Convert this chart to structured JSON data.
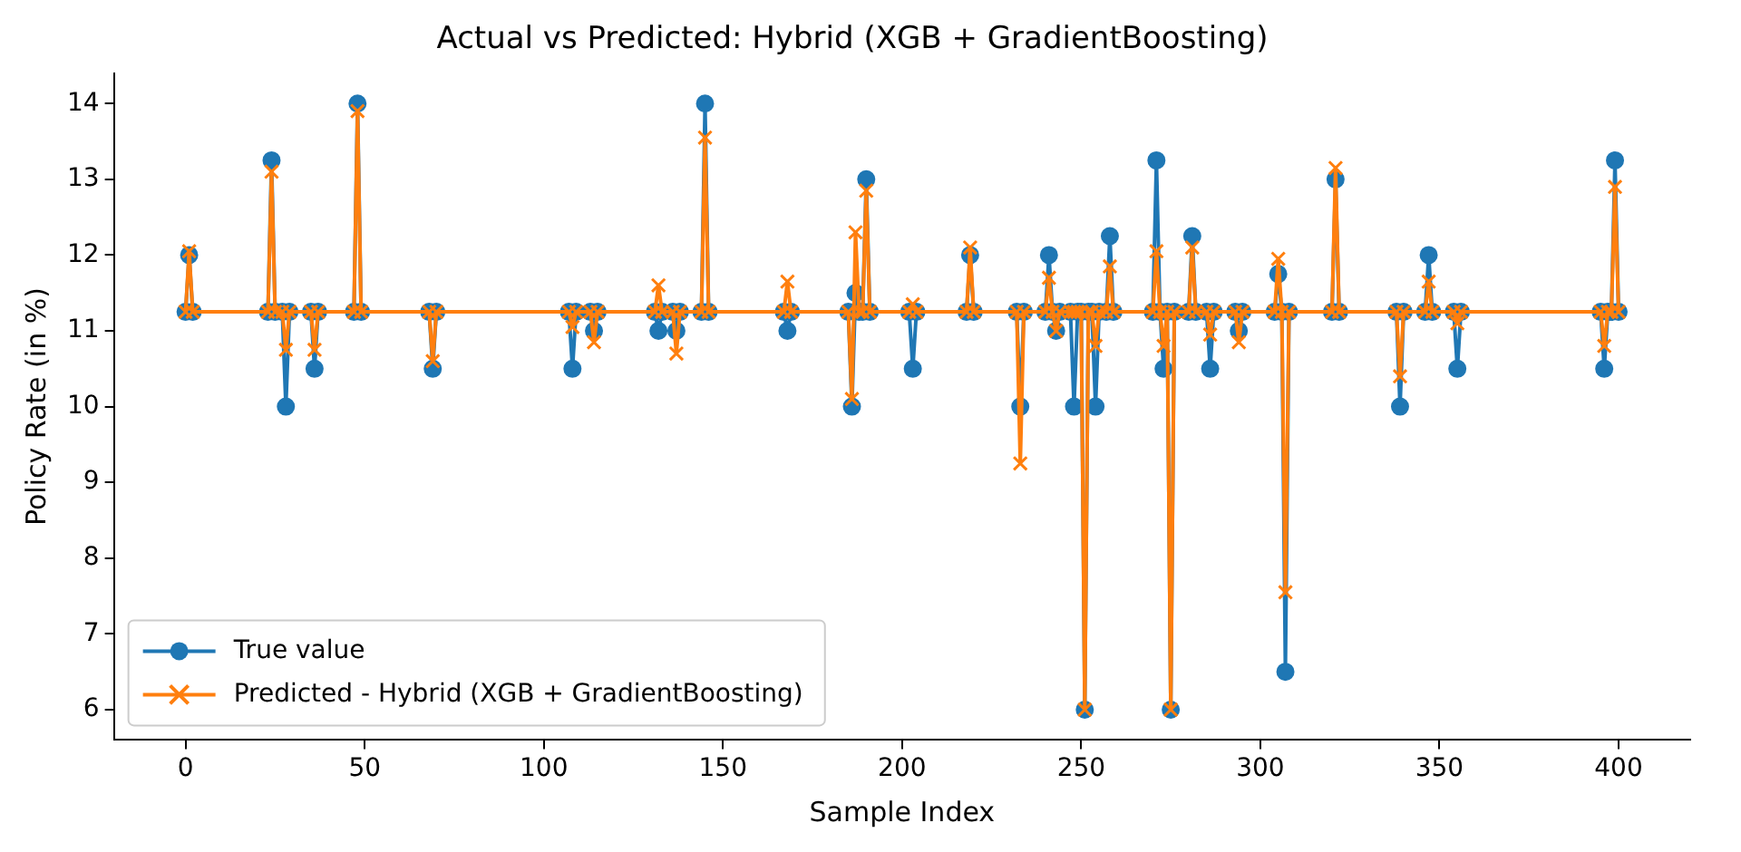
{
  "chart_data": {
    "type": "line",
    "title": "Actual vs Predicted: Hybrid (XGB + GradientBoosting)",
    "xlabel": "Sample Index",
    "ylabel": "Policy Rate (in %)",
    "x": [
      0,
      1,
      2,
      23,
      24,
      25,
      27,
      28,
      29,
      35,
      36,
      37,
      47,
      48,
      49,
      68,
      69,
      70,
      107,
      108,
      109,
      113,
      114,
      115,
      131,
      132,
      133,
      136,
      137,
      138,
      144,
      145,
      146,
      167,
      168,
      169,
      185,
      186,
      187,
      188,
      189,
      190,
      191,
      202,
      203,
      204,
      218,
      219,
      220,
      232,
      233,
      234,
      240,
      241,
      242,
      243,
      244,
      247,
      248,
      249,
      250,
      251,
      252,
      253,
      254,
      255,
      257,
      258,
      259,
      270,
      271,
      272,
      273,
      274,
      275,
      276,
      280,
      281,
      282,
      285,
      286,
      287,
      293,
      294,
      295,
      304,
      305,
      306,
      307,
      308,
      320,
      321,
      322,
      338,
      339,
      340,
      346,
      347,
      348,
      354,
      355,
      356,
      395,
      396,
      397,
      398,
      399,
      400
    ],
    "series": [
      {
        "name": "True value",
        "color": "#1f77b4",
        "marker": "circle",
        "values": [
          11.25,
          12,
          11.25,
          11.25,
          13.25,
          11.25,
          11.25,
          10,
          11.25,
          11.25,
          10.5,
          11.25,
          11.25,
          14,
          11.25,
          11.25,
          10.5,
          11.25,
          11.25,
          10.5,
          11.25,
          11.25,
          11,
          11.25,
          11.25,
          11,
          11.25,
          11.25,
          11,
          11.25,
          11.25,
          14,
          11.25,
          11.25,
          11,
          11.25,
          11.25,
          10,
          11.5,
          11.25,
          11.25,
          13,
          11.25,
          11.25,
          10.5,
          11.25,
          11.25,
          12,
          11.25,
          11.25,
          10,
          11.25,
          11.25,
          12,
          11.25,
          11,
          11.25,
          11.25,
          10,
          11.25,
          11.25,
          6,
          11.25,
          11.25,
          10,
          11.25,
          11.25,
          12.25,
          11.25,
          11.25,
          13.25,
          11.25,
          10.5,
          11.25,
          6,
          11.25,
          11.25,
          12.25,
          11.25,
          11.25,
          10.5,
          11.25,
          11.25,
          11,
          11.25,
          11.25,
          11.75,
          11.25,
          6.5,
          11.25,
          11.25,
          13,
          11.25,
          11.25,
          10,
          11.25,
          11.25,
          12,
          11.25,
          11.25,
          10.5,
          11.25,
          11.25,
          10.5,
          11.25,
          11.25,
          13.25,
          11.25
        ]
      },
      {
        "name": "Predicted - Hybrid (XGB + GradientBoosting)",
        "color": "#ff7f0e",
        "marker": "cross",
        "values": [
          11.25,
          12.05,
          11.25,
          11.25,
          13.1,
          11.25,
          11.25,
          10.75,
          11.25,
          11.25,
          10.75,
          11.25,
          11.25,
          13.9,
          11.25,
          11.25,
          10.6,
          11.25,
          11.25,
          11.05,
          11.25,
          11.25,
          10.85,
          11.25,
          11.25,
          11.6,
          11.25,
          11.25,
          10.7,
          11.25,
          11.25,
          13.55,
          11.25,
          11.25,
          11.65,
          11.25,
          11.25,
          10.1,
          12.3,
          11.25,
          11.25,
          12.85,
          11.25,
          11.25,
          11.35,
          11.25,
          11.25,
          12.1,
          11.25,
          11.25,
          9.25,
          11.25,
          11.25,
          11.7,
          11.25,
          11,
          11.25,
          11.25,
          11.25,
          11.25,
          11.25,
          6,
          11.25,
          11.25,
          10.8,
          11.25,
          11.25,
          11.85,
          11.25,
          11.25,
          12.05,
          11.25,
          10.8,
          11.25,
          6,
          11.25,
          11.25,
          12.1,
          11.25,
          11.25,
          10.95,
          11.25,
          11.25,
          10.85,
          11.25,
          11.25,
          11.95,
          11.25,
          7.55,
          11.25,
          11.25,
          13.15,
          11.25,
          11.25,
          10.4,
          11.25,
          11.25,
          11.65,
          11.25,
          11.25,
          11.1,
          11.25,
          11.25,
          10.8,
          11.25,
          11.25,
          12.9,
          11.25
        ]
      }
    ],
    "xlim": [
      -20,
      420
    ],
    "xticks": [
      0,
      50,
      100,
      150,
      200,
      250,
      300,
      350,
      400
    ],
    "ylim": [
      5.6,
      14.4
    ],
    "yticks": [
      6,
      7,
      8,
      9,
      10,
      11,
      12,
      13,
      14
    ],
    "grid": false,
    "legend": "bottom left",
    "line_style": "solid"
  }
}
